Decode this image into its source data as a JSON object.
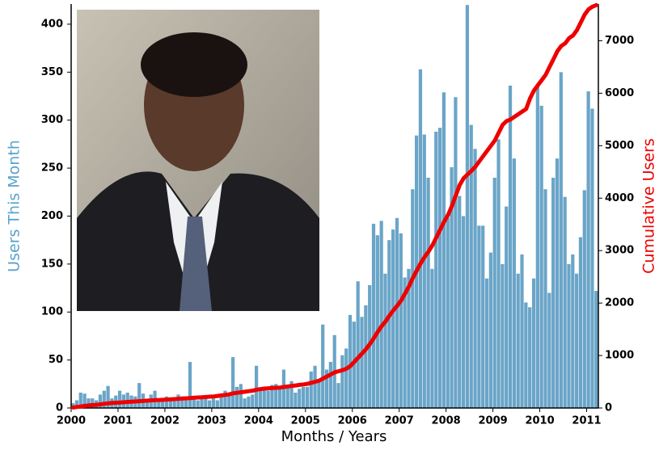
{
  "chart_data": {
    "type": "bar",
    "xlabel": "Months / Years",
    "ylabel": "Users This Month",
    "y2label": "Cumulative Users",
    "categories": [
      "2000",
      null,
      null,
      null,
      null,
      null,
      null,
      null,
      null,
      null,
      null,
      null,
      "2001",
      null,
      null,
      null,
      null,
      null,
      null,
      null,
      null,
      null,
      null,
      null,
      "2002",
      null,
      null,
      null,
      null,
      null,
      null,
      null,
      null,
      null,
      null,
      null,
      "2003",
      null,
      null,
      null,
      null,
      null,
      null,
      null,
      null,
      null,
      null,
      null,
      "2004",
      null,
      null,
      null,
      null,
      null,
      null,
      null,
      null,
      null,
      null,
      null,
      "2005",
      null,
      null,
      null,
      null,
      null,
      null,
      null,
      null,
      null,
      null,
      null,
      "2006",
      null,
      null,
      null,
      null,
      null,
      null,
      null,
      null,
      null,
      null,
      null,
      "2007",
      null,
      null,
      null,
      null,
      null,
      null,
      null,
      null,
      null,
      null,
      null,
      "2008",
      null,
      null,
      null,
      null,
      null,
      null,
      null,
      null,
      null,
      null,
      null,
      "2009",
      null,
      null,
      null,
      null,
      null,
      null,
      null,
      null,
      null,
      null,
      null,
      "2010",
      null,
      null,
      null,
      null,
      null,
      null,
      null,
      null,
      null,
      null,
      null,
      "2011",
      null,
      null
    ],
    "series": [
      {
        "type": "bar",
        "color": "#6aa5c8",
        "values": [
          5,
          8,
          16,
          15,
          10,
          10,
          8,
          14,
          18,
          23,
          10,
          13,
          18,
          14,
          16,
          13,
          12,
          26,
          15,
          8,
          14,
          18,
          10,
          8,
          12,
          10,
          8,
          14,
          12,
          10,
          48,
          12,
          8,
          12,
          10,
          8,
          10,
          8,
          12,
          18,
          14,
          53,
          22,
          25,
          10,
          12,
          14,
          44,
          20,
          22,
          18,
          24,
          25,
          22,
          40,
          24,
          28,
          16,
          20,
          22,
          22,
          38,
          44,
          30,
          87,
          40,
          48,
          76,
          26,
          55,
          62,
          97,
          90,
          132,
          95,
          107,
          128,
          192,
          180,
          195,
          140,
          175,
          186,
          198,
          182,
          136,
          145,
          228,
          284,
          353,
          285,
          240,
          145,
          288,
          292,
          329,
          198,
          251,
          324,
          221,
          200,
          420,
          295,
          270,
          190,
          190,
          135,
          162,
          240,
          280,
          150,
          210,
          336,
          260,
          140,
          160,
          110,
          105,
          135,
          335,
          315,
          228,
          120,
          240,
          260,
          350,
          220,
          150,
          160,
          140,
          178,
          227,
          330,
          312,
          122
        ]
      },
      {
        "type": "line",
        "axis": "y2",
        "color": "#ee0000",
        "values": [
          10,
          20,
          30,
          40,
          50,
          55,
          60,
          70,
          80,
          90,
          95,
          100,
          105,
          110,
          115,
          120,
          125,
          130,
          135,
          140,
          145,
          150,
          152,
          155,
          160,
          165,
          170,
          175,
          180,
          185,
          190,
          195,
          200,
          205,
          210,
          215,
          220,
          230,
          240,
          250,
          260,
          280,
          290,
          300,
          310,
          320,
          330,
          350,
          360,
          370,
          375,
          380,
          385,
          390,
          400,
          410,
          420,
          430,
          440,
          450,
          460,
          480,
          500,
          520,
          560,
          600,
          640,
          680,
          700,
          720,
          750,
          800,
          880,
          960,
          1040,
          1120,
          1220,
          1330,
          1450,
          1560,
          1650,
          1760,
          1860,
          1950,
          2050,
          2180,
          2320,
          2480,
          2620,
          2760,
          2880,
          2980,
          3100,
          3250,
          3400,
          3550,
          3680,
          3850,
          4050,
          4250,
          4380,
          4450,
          4520,
          4600,
          4700,
          4800,
          4900,
          5000,
          5100,
          5250,
          5400,
          5470,
          5500,
          5550,
          5600,
          5650,
          5700,
          5900,
          6050,
          6150,
          6250,
          6350,
          6500,
          6650,
          6800,
          6900,
          6950,
          7050,
          7100,
          7200,
          7350,
          7500,
          7600,
          7650,
          7680
        ]
      }
    ],
    "ylim": [
      0,
      421
    ],
    "yticks": [
      0,
      50,
      100,
      150,
      200,
      250,
      300,
      350,
      400
    ],
    "y2lim": [
      0,
      7700
    ],
    "y2ticks": [
      0,
      1000,
      2000,
      3000,
      4000,
      5000,
      6000,
      7000
    ]
  }
}
